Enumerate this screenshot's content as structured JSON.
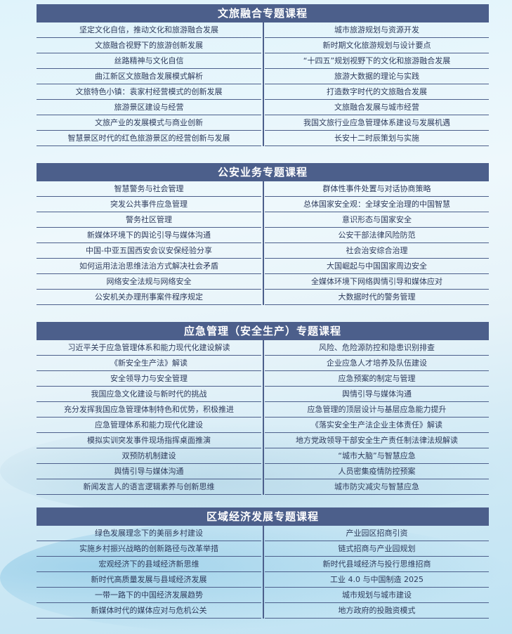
{
  "sections": [
    {
      "title": "文旅融合专题课程",
      "rows": [
        [
          "坚定文化自信，推动文化和旅游融合发展",
          "城市旅游规划与资源开发"
        ],
        [
          "文旅融合视野下的旅游创新发展",
          "新时期文化旅游规划与设计要点"
        ],
        [
          "丝路精神与文化自信",
          "“十四五”规划视野下的文化和旅游融合发展"
        ],
        [
          "曲江新区文旅融合发展模式解析",
          "旅游大数据的理论与实践"
        ],
        [
          "文旅特色小镇：袁家村经营模式的创新发展",
          "打造数字时代的文旅融合发展"
        ],
        [
          "旅游景区建设与经营",
          "文旅融合发展与城市经营"
        ],
        [
          "文旅产业的发展模式与商业创新",
          "我国文旅行业应急管理体系建设与发展机遇"
        ],
        [
          "智慧景区时代的红色旅游景区的经营创新与发展",
          "长安十二时辰策划与实施"
        ]
      ]
    },
    {
      "title": "公安业务专题课程",
      "rows": [
        [
          "智慧警务与社会管理",
          "群体性事件处置与对话协商策略"
        ],
        [
          "突发公共事件应急管理",
          "总体国家安全观：全球安全治理的中国智慧"
        ],
        [
          "警务社区管理",
          "意识形态与国家安全"
        ],
        [
          "新媒体环境下的舆论引导与媒体沟通",
          "公安干部法律风险防范"
        ],
        [
          "中国-中亚五国西安会议安保经验分享",
          "社会治安综合治理"
        ],
        [
          "如何运用法治思维法治方式解决社会矛盾",
          "大国崛起与中国国家周边安全"
        ],
        [
          "网络安全法规与网络安全",
          "全媒体环境下网络舆情引导和媒体应对"
        ],
        [
          "公安机关办理刑事案件程序规定",
          "大数据时代的警务管理"
        ]
      ]
    },
    {
      "title": "应急管理（安全生产）专题课程",
      "rows": [
        [
          "习近平关于应急管理体系和能力现代化建设解读",
          "风险、危险源防控和隐患识别排查"
        ],
        [
          "《新安全生产法》解读",
          "企业应急人才培养及队伍建设"
        ],
        [
          "安全领导力与安全管理",
          "应急预案的制定与管理"
        ],
        [
          "我国应急文化建设与新时代的挑战",
          "舆情引导与媒体沟通"
        ],
        [
          "充分发挥我国应急管理体制特色和优势，积极推进",
          "应急管理的顶层设计与基层应急能力提升"
        ],
        [
          "应急管理体系和能力现代化建设",
          "《落实安全生产法企业主体责任》解读"
        ],
        [
          "模拟实训突发事件现场指挥桌面推演",
          "地方党政领导干部安全生产责任制法律法规解读"
        ],
        [
          "双预防机制建设",
          "“城市大脑”与智慧应急"
        ],
        [
          "舆情引导与媒体沟通",
          "人员密集疫情防控预案"
        ],
        [
          "新闻发言人的语言逻辑素养与创新思维",
          "城市防灾减灾与智慧应急"
        ]
      ]
    },
    {
      "title": "区域经济发展专题课程",
      "rows": [
        [
          "绿色发展理念下的美丽乡村建设",
          "产业园区招商引资"
        ],
        [
          "实施乡村振兴战略的创新路径与改革举措",
          "链式招商与产业园规划"
        ],
        [
          "宏观经济下的县域经济新思维",
          "新时代县域经济与投行思维招商"
        ],
        [
          "新时代高质量发展与县域经济发展",
          "工业 4.0 与中国制造 2025"
        ],
        [
          "一带一路下的中国经济发展趋势",
          "城市规划与城市建设"
        ],
        [
          "新媒体时代的媒体应对与危机公关",
          "地方政府的投融资模式"
        ]
      ]
    }
  ]
}
